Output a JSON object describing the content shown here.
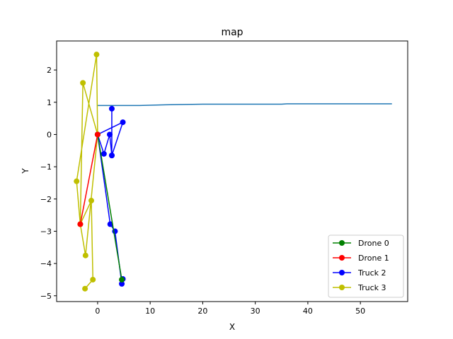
{
  "chart_data": {
    "type": "line",
    "title": "map",
    "xlabel": "X",
    "ylabel": "Y",
    "xlim": [
      -7.8,
      59.0
    ],
    "ylim": [
      -5.18,
      2.9
    ],
    "x_ticks": [
      0,
      10,
      20,
      30,
      40,
      50
    ],
    "y_ticks": [
      2,
      1,
      0,
      -1,
      -2,
      -3,
      -4,
      -5
    ],
    "x_tick_labels": [
      "0",
      "10",
      "20",
      "30",
      "40",
      "50"
    ],
    "y_tick_labels": [
      "2",
      "1",
      "0",
      "−1",
      "−2",
      "−3",
      "−4",
      "−5"
    ],
    "grid": false,
    "legend_position": "lower-right",
    "background_line": {
      "color": "#1f77b4",
      "x": [
        0,
        8,
        13,
        16,
        20,
        25,
        30,
        35,
        36,
        40,
        45,
        50,
        56
      ],
      "y": [
        0.9,
        0.9,
        0.92,
        0.93,
        0.94,
        0.94,
        0.94,
        0.94,
        0.95,
        0.95,
        0.95,
        0.95,
        0.95
      ]
    },
    "series": [
      {
        "name": "Drone 0",
        "color": "#008000",
        "x": [
          0,
          4.6
        ],
        "y": [
          0,
          -4.5
        ]
      },
      {
        "name": "Drone 1",
        "color": "#ff0000",
        "x": [
          -3.3,
          0
        ],
        "y": [
          -2.78,
          0
        ]
      },
      {
        "name": "Truck 2",
        "color": "#0000ff",
        "x": [
          0,
          1.2,
          2.3,
          2.7,
          2.7,
          2.7,
          4.8,
          0,
          2.4,
          3.3,
          4.6,
          4.8
        ],
        "y": [
          0,
          -0.6,
          0,
          -0.65,
          0.8,
          -0.65,
          0.38,
          0,
          -2.78,
          -3.0,
          -4.63,
          -4.48
        ]
      },
      {
        "name": "Truck 3",
        "color": "#bfbf00",
        "x": [
          0,
          -0.2,
          -4.0,
          -3.3,
          -2.3,
          0,
          -2.8,
          -3.3,
          -1.2,
          -0.9,
          -2.4
        ],
        "y": [
          0,
          2.48,
          -1.45,
          -2.78,
          -3.75,
          0,
          1.6,
          -2.78,
          -2.05,
          -4.5,
          -4.78
        ]
      }
    ]
  }
}
